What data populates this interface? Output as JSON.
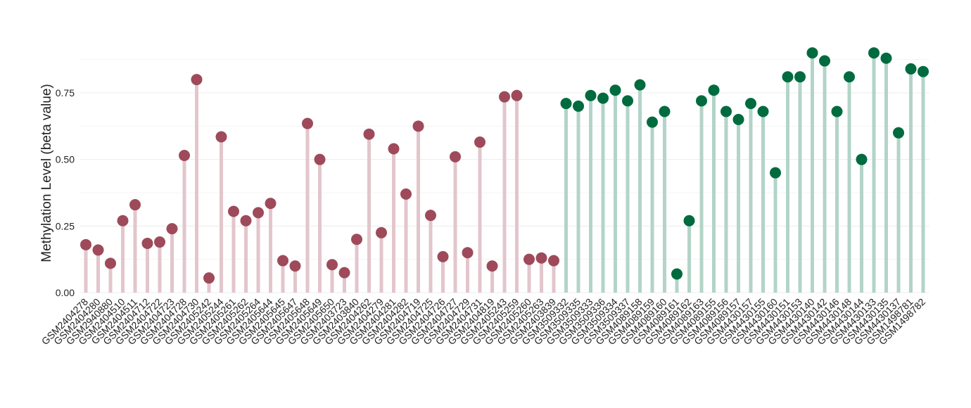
{
  "chart_data": {
    "type": "lollipop",
    "y_label": "Methylation Level (beta value)",
    "categories": [
      "GSM2404278",
      "GSM2404280",
      "GSM2940880",
      "GSM2404510",
      "GSM2404511",
      "GSM2404712",
      "GSM2404722",
      "GSM2404723",
      "GSM2404728",
      "GSM2404730",
      "GSM2405242",
      "GSM2405244",
      "GSM2405261",
      "GSM2405262",
      "GSM2405264",
      "GSM2405644",
      "GSM2405645",
      "GSM2405647",
      "GSM2405648",
      "GSM2405649",
      "GSM2405650",
      "GSM2403723",
      "GSM2403840",
      "GSM2404262",
      "GSM2404279",
      "GSM2404281",
      "GSM2404282",
      "GSM2404719",
      "GSM2404725",
      "GSM2404726",
      "GSM2404727",
      "GSM2404729",
      "GSM2404731",
      "GSM2404819",
      "GSM2405243",
      "GSM2405259",
      "GSM2405260",
      "GSM2405263",
      "GSM2403839",
      "GSM3509332",
      "GSM3509335",
      "GSM3509333",
      "GSM3509336",
      "GSM3509334",
      "GSM3509337",
      "GSM4089158",
      "GSM4089159",
      "GSM4089160",
      "GSM4089161",
      "GSM4089162",
      "GSM4089163",
      "GSM4089155",
      "GSM4089156",
      "GSM4089157",
      "GSM4430157",
      "GSM4430155",
      "GSM4430160",
      "GSM4430151",
      "GSM4430153",
      "GSM4430140",
      "GSM4430142",
      "GSM4430146",
      "GSM4430148",
      "GSM4430144",
      "GSM4430133",
      "GSM4430135",
      "GSM4430137",
      "GSM1498781",
      "GSM1498782"
    ],
    "series": [
      {
        "color": "#9e4a5a",
        "stem_color": "#e2c6cc",
        "values": [
          0.18,
          0.16,
          0.11,
          0.27,
          0.33,
          0.185,
          0.19,
          0.24,
          0.515,
          0.8,
          0.055,
          0.585,
          0.305,
          0.27,
          0.3,
          0.335,
          0.12,
          0.1,
          0.635,
          0.5,
          0.105,
          0.075,
          0.2,
          0.595,
          0.225,
          0.54,
          0.37,
          0.625,
          0.29,
          0.135,
          0.51,
          0.15,
          0.565,
          0.1,
          0.735,
          0.74,
          0.125,
          0.13,
          0.12,
          null,
          null,
          null,
          null,
          null,
          null,
          null,
          null,
          null,
          null,
          null,
          null,
          null,
          null,
          null,
          null,
          null,
          null,
          null,
          null,
          null,
          null,
          null,
          null,
          null,
          null,
          null,
          null,
          null,
          null
        ]
      },
      {
        "color": "#006b3f",
        "stem_color": "#b3d4c8",
        "values": [
          null,
          null,
          null,
          null,
          null,
          null,
          null,
          null,
          null,
          null,
          null,
          null,
          null,
          null,
          null,
          null,
          null,
          null,
          null,
          null,
          null,
          null,
          null,
          null,
          null,
          null,
          null,
          null,
          null,
          null,
          null,
          null,
          null,
          null,
          null,
          null,
          null,
          null,
          null,
          0.71,
          0.7,
          0.74,
          0.73,
          0.76,
          0.72,
          0.78,
          0.64,
          0.68,
          0.07,
          0.27,
          0.72,
          0.76,
          0.68,
          0.65,
          0.71,
          0.68,
          0.45,
          0.81,
          0.81,
          0.9,
          0.87,
          0.68,
          0.81,
          0.5,
          0.9,
          0.88,
          0.6,
          0.84,
          0.83
        ]
      }
    ],
    "ylim": [
      0,
      0.97
    ],
    "yticks": [
      {
        "value": 0,
        "label": "0.00"
      },
      0.25,
      {
        "value": 0.5,
        "label": "0.50"
      },
      0.75
    ],
    "minor_yticks": [
      0.125,
      0.375,
      0.625,
      0.875
    ],
    "grid": true
  }
}
